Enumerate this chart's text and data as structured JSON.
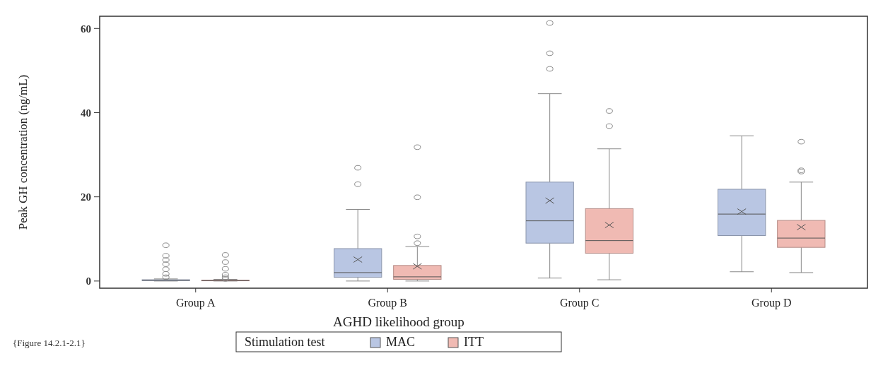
{
  "chart_data": {
    "type": "box",
    "xlabel": "AGHD likelihood group",
    "ylabel": "Peak GH concentration (ng/mL)",
    "legend_title": "Stimulation test",
    "legend": "bottom",
    "annotations": [
      "{Figure 14.2.1-2.1}"
    ],
    "categories": [
      "Group A",
      "Group B",
      "Group C",
      "Group D"
    ],
    "ylim": [
      -1.7,
      62.9
    ],
    "yticks": [
      0,
      20,
      40,
      60
    ],
    "marker": "circle",
    "series": [
      {
        "name": "MAC",
        "color": "#b9c6e3",
        "boxes": [
          {
            "low": 0,
            "q1": 0.1,
            "median": 0.2,
            "q3": 0.3,
            "high": 0.5,
            "outliers": [
              8.5,
              6,
              5,
              4,
              2.8,
              1.7,
              0.9
            ]
          },
          {
            "low": 0,
            "q1": 0.9,
            "median": 2.0,
            "q3": 7.7,
            "high": 17.0,
            "mean": 5.1,
            "outliers": [
              26.9,
              23.0
            ]
          },
          {
            "low": 0.7,
            "q1": 9.0,
            "median": 14.3,
            "q3": 23.5,
            "high": 44.5,
            "mean": 19.1,
            "outliers": [
              61.3,
              54.1,
              50.4
            ]
          },
          {
            "low": 2.2,
            "q1": 10.8,
            "median": 15.9,
            "q3": 21.8,
            "high": 34.5,
            "mean": 16.5
          }
        ]
      },
      {
        "name": "ITT",
        "color": "#f0bab3",
        "boxes": [
          {
            "low": 0,
            "q1": 0.05,
            "median": 0.1,
            "q3": 0.2,
            "high": 0.4,
            "outliers": [
              6.2,
              4.5,
              2.9,
              1.5,
              0.9,
              0.5
            ]
          },
          {
            "low": 0,
            "q1": 0.4,
            "median": 1.0,
            "q3": 3.7,
            "high": 8.2,
            "mean": 3.5,
            "outliers": [
              31.8,
              19.9,
              10.6,
              9.0
            ]
          },
          {
            "low": 0.3,
            "q1": 6.6,
            "median": 9.6,
            "q3": 17.2,
            "high": 31.4,
            "mean": 13.3,
            "outliers": [
              40.4,
              36.8
            ]
          },
          {
            "low": 2.0,
            "q1": 8.0,
            "median": 10.2,
            "q3": 14.4,
            "high": 23.5,
            "mean": 12.8,
            "outliers": [
              33.1,
              26.3,
              26.0
            ]
          }
        ]
      }
    ]
  }
}
